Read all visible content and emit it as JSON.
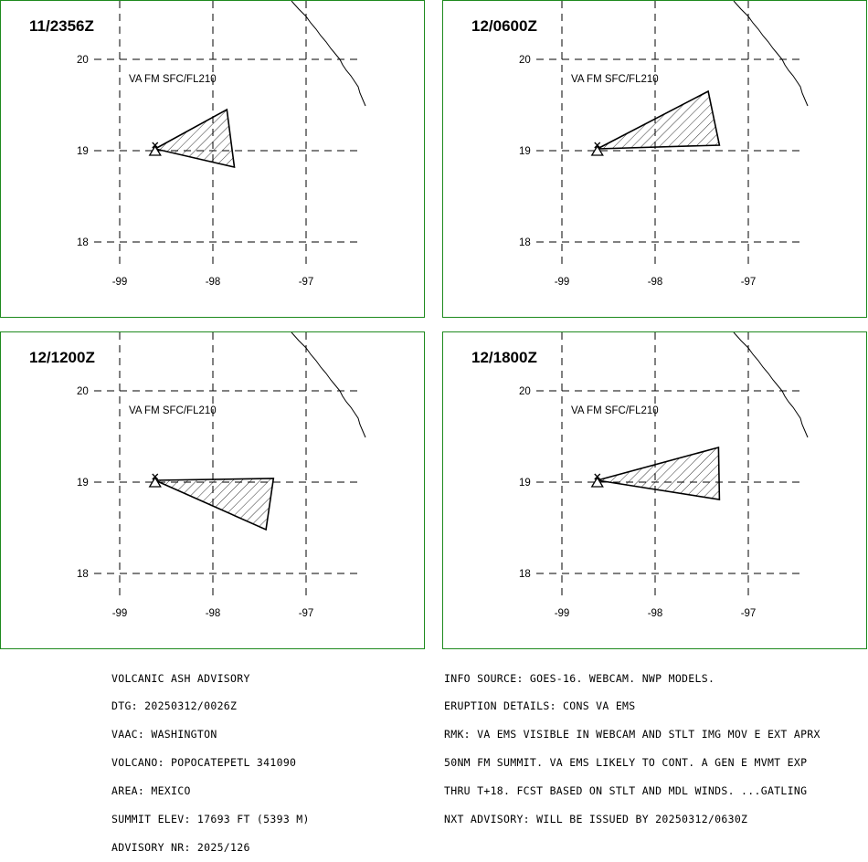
{
  "panels": [
    {
      "title": "11/2356Z",
      "label": "VA FM SFC/FL210",
      "lat_labels": [
        "20",
        "19",
        "18"
      ],
      "lon_labels": [
        "-99",
        "-98",
        "-97"
      ],
      "ash_polygon": [
        [
          -98.62,
          19.02
        ],
        [
          -97.85,
          19.45
        ],
        [
          -97.77,
          18.82
        ]
      ]
    },
    {
      "title": "12/0600Z",
      "label": "VA FM SFC/FL210",
      "lat_labels": [
        "20",
        "19",
        "18"
      ],
      "lon_labels": [
        "-99",
        "-98",
        "-97"
      ],
      "ash_polygon": [
        [
          -98.62,
          19.02
        ],
        [
          -97.43,
          19.65
        ],
        [
          -97.31,
          19.06
        ]
      ]
    },
    {
      "title": "12/1200Z",
      "label": "VA FM SFC/FL210",
      "lat_labels": [
        "20",
        "19",
        "18"
      ],
      "lon_labels": [
        "-99",
        "-98",
        "-97"
      ],
      "ash_polygon": [
        [
          -98.62,
          19.02
        ],
        [
          -97.35,
          19.04
        ],
        [
          -97.43,
          18.48
        ]
      ]
    },
    {
      "title": "12/1800Z",
      "label": "VA FM SFC/FL210",
      "lat_labels": [
        "20",
        "19",
        "18"
      ],
      "lon_labels": [
        "-99",
        "-98",
        "-97"
      ],
      "ash_polygon": [
        [
          -98.62,
          19.02
        ],
        [
          -97.32,
          19.38
        ],
        [
          -97.31,
          18.81
        ]
      ]
    }
  ],
  "advisory_left": [
    "VOLCANIC ASH ADVISORY",
    "DTG: 20250312/0026Z",
    "VAAC: WASHINGTON",
    "VOLCANO: POPOCATEPETL 341090",
    "AREA: MEXICO",
    "SUMMIT ELEV: 17693 FT (5393 M)",
    "ADVISORY NR: 2025/126"
  ],
  "advisory_right": [
    "INFO SOURCE: GOES-16. WEBCAM. NWP MODELS.",
    "ERUPTION DETAILS: CONS VA EMS",
    "RMK: VA EMS VISIBLE IN WEBCAM AND STLT IMG MOV E EXT APRX",
    "50NM FM SUMMIT. VA EMS LIKELY TO CONT. A GEN E MVMT EXP",
    "THRU T+18. FCST BASED ON STLT AND MDL WINDS. ...GATLING",
    "NXT ADVISORY: WILL BE ISSUED BY 20250312/0630Z"
  ],
  "colors": {
    "border": "#1e8a1e",
    "ink": "#000000"
  }
}
